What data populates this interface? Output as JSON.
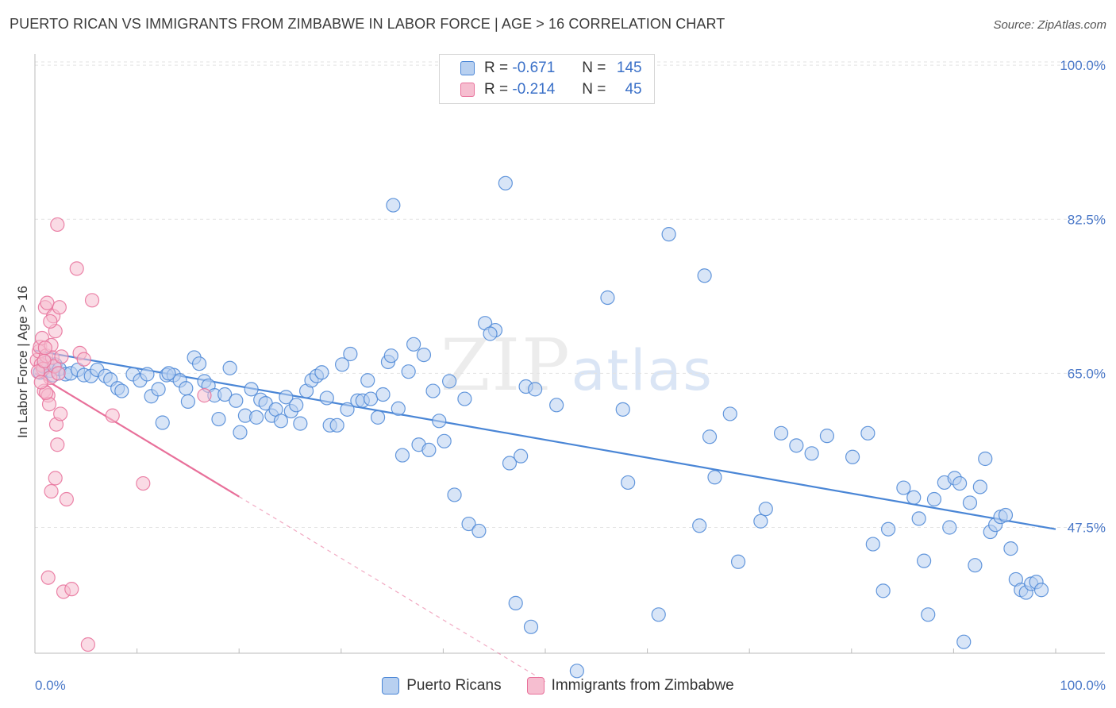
{
  "title": "PUERTO RICAN VS IMMIGRANTS FROM ZIMBABWE IN LABOR FORCE | AGE > 16 CORRELATION CHART",
  "source": "Source: ZipAtlas.com",
  "watermark": {
    "zip": "ZIP",
    "atlas": "atlas"
  },
  "colors": {
    "blue": "#4a86d6",
    "blue_fill": "#b8d0f0",
    "pink": "#e8709a",
    "pink_fill": "#f6bed0",
    "grid": "#e3e3e3",
    "tick_text": "#4a78c8"
  },
  "legend": {
    "rows": [
      {
        "r_label": "R =",
        "r_value": "-0.671",
        "n_label": "N =",
        "n_value": "145"
      },
      {
        "r_label": "R =",
        "r_value": "-0.214",
        "n_label": "N =",
        "n_value": "45"
      }
    ]
  },
  "series_names": [
    "Puerto Ricans",
    "Immigrants from Zimbabwe"
  ],
  "chart_data": {
    "type": "scatter",
    "title": "PUERTO RICAN VS IMMIGRANTS FROM ZIMBABWE IN LABOR FORCE | AGE > 16 CORRELATION CHART",
    "xlabel": "",
    "ylabel": "In Labor Force | Age > 16",
    "xlim": [
      0,
      100
    ],
    "ylim": [
      33.3,
      102.0
    ],
    "x_tick_labels": [
      "0.0%",
      "100.0%"
    ],
    "y_ticks": [
      47.5,
      65.0,
      82.5,
      100.0
    ],
    "y_tick_labels": [
      "47.5%",
      "65.0%",
      "82.5%",
      "100.0%"
    ],
    "grid": "horizontal dashed",
    "legend_placement": "top-center and bottom",
    "series": [
      {
        "name": "Puerto Ricans",
        "color": "#4a86d6",
        "r": -0.671,
        "n": 145,
        "trend": {
          "x0": 0,
          "y0": 67.6,
          "x1": 100,
          "y1": 47.3
        },
        "points": [
          [
            0.5,
            65.1
          ],
          [
            0.8,
            65.8
          ],
          [
            1.2,
            66.2
          ],
          [
            1.5,
            65.3
          ],
          [
            1.8,
            64.8
          ],
          [
            2.0,
            66.0
          ],
          [
            2.4,
            65.5
          ],
          [
            3.0,
            64.9
          ],
          [
            3.5,
            65.0
          ],
          [
            4.2,
            65.4
          ],
          [
            4.8,
            64.8
          ],
          [
            5.5,
            64.7
          ],
          [
            6.1,
            65.4
          ],
          [
            6.9,
            64.7
          ],
          [
            7.4,
            64.3
          ],
          [
            8.1,
            63.3
          ],
          [
            8.5,
            63.0
          ],
          [
            9.6,
            64.9
          ],
          [
            10.3,
            64.2
          ],
          [
            11.0,
            64.9
          ],
          [
            11.4,
            62.4
          ],
          [
            12.1,
            63.2
          ],
          [
            12.5,
            59.4
          ],
          [
            12.9,
            64.8
          ],
          [
            13.6,
            64.8
          ],
          [
            14.2,
            64.2
          ],
          [
            14.8,
            63.3
          ],
          [
            15.0,
            61.8
          ],
          [
            15.6,
            66.8
          ],
          [
            16.1,
            66.1
          ],
          [
            16.6,
            64.1
          ],
          [
            17.0,
            63.6
          ],
          [
            17.6,
            62.5
          ],
          [
            18.0,
            59.8
          ],
          [
            18.6,
            62.6
          ],
          [
            19.1,
            65.6
          ],
          [
            19.7,
            61.9
          ],
          [
            20.1,
            58.3
          ],
          [
            20.6,
            60.2
          ],
          [
            21.2,
            63.2
          ],
          [
            21.7,
            60.0
          ],
          [
            22.1,
            62.0
          ],
          [
            22.6,
            61.6
          ],
          [
            23.2,
            60.2
          ],
          [
            23.6,
            60.9
          ],
          [
            24.1,
            59.6
          ],
          [
            24.6,
            62.3
          ],
          [
            25.1,
            60.7
          ],
          [
            25.6,
            61.4
          ],
          [
            26.0,
            59.3
          ],
          [
            26.6,
            63.0
          ],
          [
            27.1,
            64.2
          ],
          [
            27.6,
            64.7
          ],
          [
            28.1,
            65.1
          ],
          [
            28.6,
            62.2
          ],
          [
            28.9,
            59.1
          ],
          [
            29.6,
            59.1
          ],
          [
            30.1,
            66.0
          ],
          [
            30.6,
            60.9
          ],
          [
            30.9,
            67.2
          ],
          [
            31.6,
            61.9
          ],
          [
            32.1,
            61.9
          ],
          [
            32.6,
            64.2
          ],
          [
            32.9,
            62.1
          ],
          [
            33.6,
            60.0
          ],
          [
            34.1,
            62.6
          ],
          [
            34.6,
            66.3
          ],
          [
            34.9,
            67.0
          ],
          [
            35.1,
            84.1
          ],
          [
            35.6,
            61.0
          ],
          [
            36.0,
            55.7
          ],
          [
            36.6,
            65.2
          ],
          [
            37.1,
            68.3
          ],
          [
            37.6,
            56.9
          ],
          [
            38.1,
            67.1
          ],
          [
            38.6,
            56.3
          ],
          [
            39.0,
            63.0
          ],
          [
            39.6,
            59.6
          ],
          [
            40.1,
            57.3
          ],
          [
            40.6,
            64.1
          ],
          [
            41.1,
            51.2
          ],
          [
            42.1,
            62.1
          ],
          [
            42.5,
            47.9
          ],
          [
            43.5,
            47.1
          ],
          [
            44.1,
            70.7
          ],
          [
            45.1,
            69.9
          ],
          [
            46.1,
            86.6
          ],
          [
            46.5,
            54.8
          ],
          [
            47.1,
            38.9
          ],
          [
            47.6,
            55.6
          ],
          [
            48.1,
            63.5
          ],
          [
            48.6,
            36.2
          ],
          [
            49.0,
            63.2
          ],
          [
            51.1,
            61.4
          ],
          [
            53.1,
            31.2
          ],
          [
            56.1,
            73.6
          ],
          [
            58.1,
            52.6
          ],
          [
            61.1,
            37.6
          ],
          [
            62.1,
            80.8
          ],
          [
            65.1,
            47.7
          ],
          [
            65.6,
            76.1
          ],
          [
            66.1,
            57.8
          ],
          [
            66.6,
            53.2
          ],
          [
            68.1,
            60.4
          ],
          [
            68.9,
            43.6
          ],
          [
            71.1,
            48.2
          ],
          [
            71.6,
            49.6
          ],
          [
            73.1,
            58.2
          ],
          [
            74.6,
            56.8
          ],
          [
            76.1,
            55.9
          ],
          [
            77.6,
            57.9
          ],
          [
            80.1,
            55.5
          ],
          [
            81.6,
            58.2
          ],
          [
            82.1,
            45.6
          ],
          [
            83.1,
            40.3
          ],
          [
            83.6,
            47.3
          ],
          [
            85.1,
            52.0
          ],
          [
            86.1,
            50.9
          ],
          [
            86.6,
            48.5
          ],
          [
            87.1,
            43.7
          ],
          [
            87.5,
            37.6
          ],
          [
            88.1,
            50.7
          ],
          [
            89.1,
            52.6
          ],
          [
            89.6,
            47.5
          ],
          [
            90.1,
            53.1
          ],
          [
            90.6,
            52.5
          ],
          [
            91.0,
            34.5
          ],
          [
            91.6,
            50.3
          ],
          [
            92.1,
            43.2
          ],
          [
            92.6,
            52.1
          ],
          [
            93.1,
            55.3
          ],
          [
            93.6,
            47.0
          ],
          [
            94.1,
            47.8
          ],
          [
            94.6,
            48.7
          ],
          [
            95.1,
            48.9
          ],
          [
            95.6,
            45.1
          ],
          [
            96.1,
            41.6
          ],
          [
            96.6,
            40.4
          ],
          [
            97.1,
            40.1
          ],
          [
            97.6,
            41.1
          ],
          [
            98.1,
            41.3
          ],
          [
            98.6,
            40.4
          ],
          [
            13.1,
            65.0
          ],
          [
            44.6,
            69.5
          ],
          [
            57.6,
            60.9
          ]
        ]
      },
      {
        "name": "Immigrants from Zimbabwe",
        "color": "#e8709a",
        "r": -0.214,
        "n": 45,
        "trend": {
          "x0": 0,
          "y0": 65.0,
          "x1": 20.0,
          "y1": 51.0,
          "x_dash_end": 50.0,
          "y_dash_end": 30.0
        },
        "points": [
          [
            0.2,
            66.5
          ],
          [
            0.4,
            67.5
          ],
          [
            0.5,
            68.0
          ],
          [
            0.6,
            66.0
          ],
          [
            0.7,
            69.0
          ],
          [
            0.8,
            65.5
          ],
          [
            0.9,
            63.0
          ],
          [
            1.0,
            72.5
          ],
          [
            1.1,
            67.0
          ],
          [
            1.2,
            73.0
          ],
          [
            1.3,
            62.5
          ],
          [
            1.4,
            61.5
          ],
          [
            1.5,
            64.5
          ],
          [
            1.6,
            68.2
          ],
          [
            1.7,
            66.8
          ],
          [
            1.8,
            71.5
          ],
          [
            1.9,
            65.8
          ],
          [
            2.0,
            69.8
          ],
          [
            2.1,
            59.2
          ],
          [
            2.2,
            56.9
          ],
          [
            2.4,
            72.5
          ],
          [
            2.5,
            60.4
          ],
          [
            2.0,
            53.1
          ],
          [
            1.6,
            51.6
          ],
          [
            1.3,
            41.8
          ],
          [
            2.6,
            66.9
          ],
          [
            2.8,
            40.2
          ],
          [
            3.1,
            50.7
          ],
          [
            3.6,
            40.5
          ],
          [
            4.1,
            76.9
          ],
          [
            4.4,
            67.3
          ],
          [
            4.8,
            66.6
          ],
          [
            5.2,
            34.2
          ],
          [
            5.6,
            73.3
          ],
          [
            7.6,
            60.2
          ],
          [
            10.6,
            52.5
          ],
          [
            16.6,
            62.5
          ],
          [
            2.2,
            81.9
          ],
          [
            1.1,
            62.8
          ],
          [
            0.3,
            65.2
          ],
          [
            0.6,
            64.0
          ],
          [
            1.0,
            67.9
          ],
          [
            1.5,
            70.9
          ],
          [
            2.3,
            65.0
          ],
          [
            0.9,
            66.4
          ]
        ]
      }
    ]
  }
}
